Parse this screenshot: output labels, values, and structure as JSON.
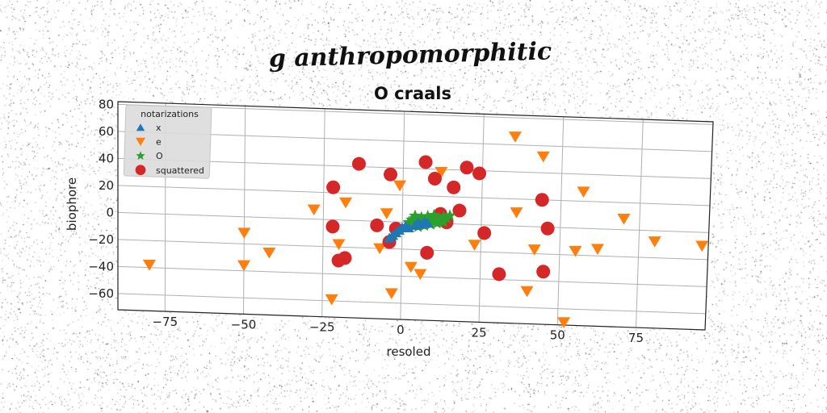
{
  "chart_data": {
    "type": "scatter",
    "suptitle": "g anthropomorphitic",
    "title": "O craals",
    "xlabel": "resoled",
    "ylabel": "biophore",
    "xlim": [
      -90,
      97
    ],
    "ylim": [
      -72,
      82
    ],
    "xticks": [
      -75,
      -50,
      -25,
      0,
      25,
      50,
      75
    ],
    "xtick_labels": [
      "−75",
      "−50",
      "−25",
      "0",
      "25",
      "50",
      "75"
    ],
    "yticks": [
      80,
      60,
      40,
      20,
      0,
      -20,
      -40,
      -60
    ],
    "ytick_labels": [
      "80",
      "60",
      "40",
      "20",
      "0",
      "−20",
      "−40",
      "−60"
    ],
    "grid": true,
    "legend": {
      "title": "notarizations",
      "placement": "top-left"
    },
    "series": [
      {
        "name": "x",
        "marker": "triangle-up",
        "color": "#1f77b4",
        "points": [
          [
            -3,
            -10
          ],
          [
            -2,
            -8
          ],
          [
            -1,
            -6
          ],
          [
            0,
            -4
          ],
          [
            1,
            -3
          ],
          [
            2,
            -4
          ],
          [
            4,
            -2
          ],
          [
            5,
            0
          ],
          [
            6,
            -1
          ],
          [
            7,
            1
          ],
          [
            8,
            0
          ],
          [
            -4,
            -12
          ]
        ]
      },
      {
        "name": "e",
        "marker": "triangle-down",
        "color": "#ff7f0e",
        "points": [
          [
            35,
            66
          ],
          [
            44,
            52
          ],
          [
            12,
            38
          ],
          [
            57,
            27
          ],
          [
            -1,
            27
          ],
          [
            -18,
            13
          ],
          [
            36,
            10
          ],
          [
            70,
            8
          ],
          [
            -28,
            7
          ],
          [
            -5,
            6
          ],
          [
            80,
            -8
          ],
          [
            95,
            -10
          ],
          [
            -50,
            -12
          ],
          [
            42,
            -17
          ],
          [
            55,
            -17
          ],
          [
            62,
            -15
          ],
          [
            23,
            -15
          ],
          [
            -20,
            -18
          ],
          [
            -7,
            -20
          ],
          [
            -42,
            -26
          ],
          [
            -50,
            -36
          ],
          [
            -80,
            -38
          ],
          [
            3,
            -33
          ],
          [
            6,
            -38
          ],
          [
            40,
            -48
          ],
          [
            -3,
            -53
          ],
          [
            -22,
            -59
          ],
          [
            52,
            -70
          ]
        ]
      },
      {
        "name": "O",
        "marker": "star",
        "color": "#2ca02c",
        "points": [
          [
            2,
            0
          ],
          [
            3,
            2
          ],
          [
            4,
            3
          ],
          [
            5,
            1
          ],
          [
            6,
            -1
          ],
          [
            7,
            0
          ],
          [
            8,
            2
          ],
          [
            9,
            3
          ],
          [
            10,
            4
          ],
          [
            11,
            2
          ],
          [
            12,
            3
          ],
          [
            13,
            5
          ],
          [
            14,
            4
          ],
          [
            15,
            6
          ],
          [
            3,
            -2
          ],
          [
            5,
            -3
          ],
          [
            7,
            -2
          ],
          [
            9,
            -1
          ],
          [
            11,
            0
          ],
          [
            13,
            1
          ],
          [
            4,
            5
          ],
          [
            6,
            4
          ],
          [
            8,
            5
          ],
          [
            10,
            6
          ]
        ]
      },
      {
        "name": "squattered",
        "marker": "circle",
        "color": "#d62728",
        "points": [
          [
            -14,
            42
          ],
          [
            7,
            45
          ],
          [
            20,
            42
          ],
          [
            24,
            38
          ],
          [
            -4,
            35
          ],
          [
            10,
            33
          ],
          [
            16,
            27
          ],
          [
            -22,
            24
          ],
          [
            44,
            20
          ],
          [
            18,
            10
          ],
          [
            12,
            7
          ],
          [
            -8,
            -3
          ],
          [
            -22,
            -5
          ],
          [
            -2,
            -5
          ],
          [
            26,
            -6
          ],
          [
            46,
            -1
          ],
          [
            -4,
            -15
          ],
          [
            8,
            -22
          ],
          [
            -18,
            -28
          ],
          [
            -20,
            -30
          ],
          [
            31,
            -36
          ],
          [
            45,
            -33
          ],
          [
            14,
            1
          ]
        ]
      }
    ]
  }
}
